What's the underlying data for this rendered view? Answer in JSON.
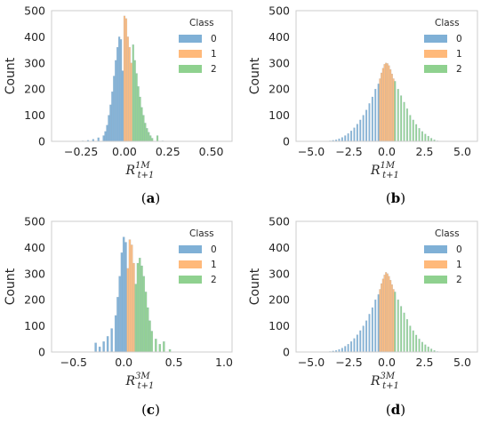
{
  "colors": {
    "class0": "#7fb0d6",
    "class1": "#ffb97a",
    "class2": "#8fd18f",
    "edge": "#4a77a0"
  },
  "chart_data": [
    {
      "type": "histogram",
      "caption": "(a)",
      "ylabel": "Count",
      "xlabel": {
        "base": "R",
        "sup": "1M",
        "sub": "t+1"
      },
      "xlim": [
        -0.42,
        0.62
      ],
      "ylim": [
        0,
        500
      ],
      "xticks": [
        {
          "v": -0.25,
          "label": "−0.25"
        },
        {
          "v": 0.0,
          "label": "0.00"
        },
        {
          "v": 0.25,
          "label": "0.25"
        },
        {
          "v": 0.5,
          "label": "0.50"
        }
      ],
      "yticks": [
        0,
        100,
        200,
        300,
        400,
        500
      ],
      "legend": {
        "title": "Class",
        "entries": [
          "0",
          "1",
          "2"
        ],
        "position": "top-right"
      },
      "series": [
        {
          "name": "0",
          "color_key": "class0",
          "x": [
            -0.24,
            -0.21,
            -0.18,
            -0.15,
            -0.12,
            -0.11,
            -0.1,
            -0.09,
            -0.08,
            -0.07,
            -0.06,
            -0.05,
            -0.04,
            -0.03,
            -0.02,
            -0.01
          ],
          "y": [
            2,
            4,
            8,
            14,
            22,
            38,
            62,
            100,
            140,
            190,
            250,
            310,
            360,
            400,
            390,
            270
          ]
        },
        {
          "name": "1",
          "color_key": "class1",
          "x": [
            0.0,
            0.01,
            0.02,
            0.03,
            0.04
          ],
          "y": [
            480,
            470,
            400,
            360,
            300
          ]
        },
        {
          "name": "2",
          "color_key": "class2",
          "x": [
            0.05,
            0.06,
            0.07,
            0.08,
            0.09,
            0.1,
            0.11,
            0.12,
            0.13,
            0.14,
            0.15,
            0.16,
            0.19,
            0.22
          ],
          "y": [
            370,
            310,
            260,
            210,
            170,
            130,
            100,
            70,
            50,
            35,
            22,
            12,
            22,
            2
          ]
        }
      ]
    },
    {
      "type": "histogram",
      "caption": "(b)",
      "ylabel": "Count",
      "xlabel": {
        "base": "R",
        "sup": "1M",
        "sub": "t+1"
      },
      "xlim": [
        -6.0,
        6.0
      ],
      "ylim": [
        0,
        500
      ],
      "xticks": [
        {
          "v": -5.0,
          "label": "−5.0"
        },
        {
          "v": -2.5,
          "label": "−2.5"
        },
        {
          "v": 0.0,
          "label": "0.0"
        },
        {
          "v": 2.5,
          "label": "2.5"
        },
        {
          "v": 5.0,
          "label": "5.0"
        }
      ],
      "yticks": [
        0,
        100,
        200,
        300,
        400,
        500
      ],
      "legend": {
        "title": "Class",
        "entries": [
          "0",
          "1",
          "2"
        ],
        "position": "top-right"
      },
      "series": [
        {
          "name": "0",
          "color_key": "class0",
          "x": [
            -3.75,
            -3.55,
            -3.35,
            -3.15,
            -2.95,
            -2.75,
            -2.55,
            -2.35,
            -2.15,
            -1.95,
            -1.75,
            -1.55,
            -1.35,
            -1.15,
            -0.95,
            -0.75,
            -0.55
          ],
          "y": [
            2,
            4,
            6,
            10,
            15,
            22,
            30,
            40,
            52,
            66,
            82,
            100,
            120,
            145,
            170,
            200,
            220
          ]
        },
        {
          "name": "1",
          "color_key": "class1",
          "x": [
            -0.45,
            -0.35,
            -0.25,
            -0.15,
            -0.05,
            0.05,
            0.15,
            0.25,
            0.35,
            0.45
          ],
          "y": [
            240,
            262,
            280,
            295,
            300,
            298,
            290,
            275,
            258,
            240
          ]
        },
        {
          "name": "2",
          "color_key": "class2",
          "x": [
            0.55,
            0.75,
            0.95,
            1.15,
            1.35,
            1.55,
            1.75,
            1.95,
            2.15,
            2.35,
            2.55,
            2.75,
            2.95,
            3.15,
            3.35
          ],
          "y": [
            230,
            200,
            175,
            150,
            125,
            100,
            82,
            65,
            50,
            38,
            28,
            20,
            12,
            6,
            2
          ]
        }
      ]
    },
    {
      "type": "histogram",
      "caption": "(c)",
      "ylabel": "Count",
      "xlabel": {
        "base": "R",
        "sup": "3M",
        "sub": "t+1"
      },
      "xlim": [
        -0.72,
        1.08
      ],
      "ylim": [
        0,
        500
      ],
      "xticks": [
        {
          "v": -0.5,
          "label": "−0.5"
        },
        {
          "v": 0.0,
          "label": "0.0"
        },
        {
          "v": 0.5,
          "label": "0.5"
        },
        {
          "v": 1.0,
          "label": "1.0"
        }
      ],
      "yticks": [
        0,
        100,
        200,
        300,
        400,
        500
      ],
      "legend": {
        "title": "Class",
        "entries": [
          "0",
          "1",
          "2"
        ],
        "position": "top-right"
      },
      "series": [
        {
          "name": "0",
          "color_key": "class0",
          "x": [
            -0.28,
            -0.24,
            -0.2,
            -0.16,
            -0.12,
            -0.08,
            -0.06,
            -0.04,
            -0.02,
            0.0,
            0.02
          ],
          "y": [
            35,
            20,
            40,
            60,
            90,
            140,
            210,
            290,
            380,
            440,
            420
          ]
        },
        {
          "name": "1",
          "color_key": "class1",
          "x": [
            0.04,
            0.06,
            0.08,
            0.1
          ],
          "y": [
            320,
            430,
            410,
            340
          ]
        },
        {
          "name": "2",
          "color_key": "class2",
          "x": [
            0.12,
            0.14,
            0.16,
            0.18,
            0.2,
            0.22,
            0.24,
            0.26,
            0.28,
            0.32,
            0.36,
            0.4,
            0.46
          ],
          "y": [
            260,
            340,
            360,
            330,
            290,
            230,
            170,
            120,
            80,
            50,
            30,
            40,
            10
          ]
        }
      ]
    },
    {
      "type": "histogram",
      "caption": "(d)",
      "ylabel": "Count",
      "xlabel": {
        "base": "R",
        "sup": "3M",
        "sub": "t+1"
      },
      "xlim": [
        -6.0,
        6.0
      ],
      "ylim": [
        0,
        500
      ],
      "xticks": [
        {
          "v": -5.0,
          "label": "−5.0"
        },
        {
          "v": -2.5,
          "label": "−2.5"
        },
        {
          "v": 0.0,
          "label": "0.0"
        },
        {
          "v": 2.5,
          "label": "2.5"
        },
        {
          "v": 5.0,
          "label": "5.0"
        }
      ],
      "yticks": [
        0,
        100,
        200,
        300,
        400,
        500
      ],
      "legend": {
        "title": "Class",
        "entries": [
          "0",
          "1",
          "2"
        ],
        "position": "top-right"
      },
      "series": [
        {
          "name": "0",
          "color_key": "class0",
          "x": [
            -3.75,
            -3.55,
            -3.35,
            -3.15,
            -2.95,
            -2.75,
            -2.55,
            -2.35,
            -2.15,
            -1.95,
            -1.75,
            -1.55,
            -1.35,
            -1.15,
            -0.95,
            -0.75,
            -0.55
          ],
          "y": [
            2,
            4,
            6,
            10,
            15,
            22,
            30,
            40,
            52,
            66,
            82,
            100,
            120,
            145,
            170,
            200,
            220
          ]
        },
        {
          "name": "1",
          "color_key": "class1",
          "x": [
            -0.45,
            -0.35,
            -0.25,
            -0.15,
            -0.05,
            0.05,
            0.15,
            0.25,
            0.35,
            0.45
          ],
          "y": [
            240,
            262,
            280,
            295,
            305,
            300,
            290,
            275,
            258,
            240
          ]
        },
        {
          "name": "2",
          "color_key": "class2",
          "x": [
            0.55,
            0.75,
            0.95,
            1.15,
            1.35,
            1.55,
            1.75,
            1.95,
            2.15,
            2.35,
            2.55,
            2.75,
            2.95,
            3.15,
            3.35
          ],
          "y": [
            230,
            200,
            175,
            150,
            125,
            100,
            82,
            65,
            50,
            38,
            28,
            20,
            12,
            6,
            2
          ]
        }
      ]
    }
  ]
}
